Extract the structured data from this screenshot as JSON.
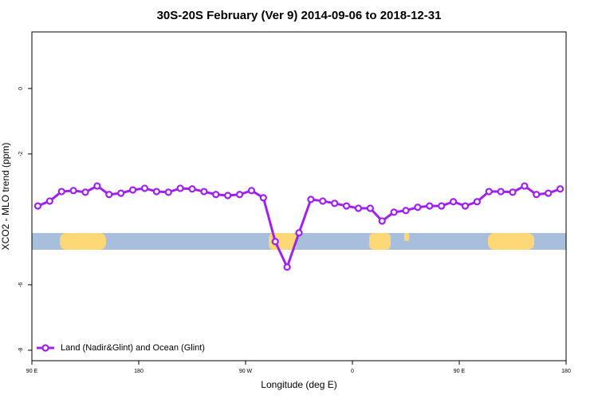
{
  "chart_data": {
    "type": "line",
    "title": "30S-20S February (Ver 9)   2014-09-06 to 2018-12-31",
    "x_label": "Longitude (deg E)",
    "y_label": "XCO2 - MLO trend (ppm)",
    "x": [
      95,
      105,
      115,
      125,
      135,
      145,
      155,
      165,
      175,
      185,
      195,
      205,
      215,
      225,
      235,
      245,
      255,
      265,
      275,
      285,
      295,
      305,
      315,
      325,
      335,
      345,
      355,
      365,
      375,
      385,
      395,
      405,
      415,
      425,
      435,
      445,
      455,
      465,
      475,
      485,
      495,
      505,
      515,
      525,
      535
    ],
    "series": [
      {
        "name": "Land (Nadir&Glint) and Ocean (Glint)",
        "color": "#a020f0",
        "values": [
          -3.59,
          -3.44,
          -3.15,
          -3.12,
          -3.17,
          -2.98,
          -3.24,
          -3.2,
          -3.1,
          -3.05,
          -3.15,
          -3.17,
          -3.05,
          -3.07,
          -3.15,
          -3.24,
          -3.27,
          -3.24,
          -3.12,
          -3.34,
          -4.68,
          -5.46,
          -4.41,
          -3.39,
          -3.44,
          -3.51,
          -3.59,
          -3.66,
          -3.66,
          -4.05,
          -3.78,
          -3.73,
          -3.63,
          -3.59,
          -3.59,
          -3.46,
          -3.59,
          -3.46,
          -3.15,
          -3.15,
          -3.17,
          -2.98,
          -3.24,
          -3.2,
          -3.07
        ]
      }
    ],
    "xlim": [
      90,
      540
    ],
    "xticks": [
      {
        "value": 90,
        "label": "90 E"
      },
      180,
      {
        "value": 270,
        "label": "90 W"
      },
      {
        "value": 360,
        "label": "0"
      },
      {
        "value": 450,
        "label": "90 E"
      },
      {
        "value": 540,
        "label": "180"
      }
    ],
    "ylim": [
      -8.32,
      1.73
    ],
    "yticks": [
      -8,
      -6,
      -2,
      0
    ],
    "legend": "bottom-left"
  }
}
